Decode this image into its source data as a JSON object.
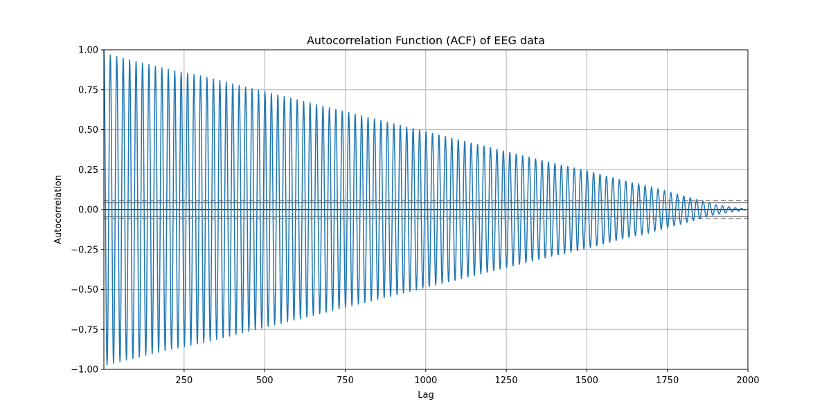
{
  "chart_data": {
    "type": "line",
    "title": "Autocorrelation Function (ACF) of EEG data",
    "xlabel": "Lag",
    "ylabel": "Autocorrelation",
    "xlim": [
      1,
      2000
    ],
    "ylim": [
      -1.0,
      1.0
    ],
    "xticks": [
      250,
      500,
      750,
      1000,
      1250,
      1500,
      1750,
      2000
    ],
    "xtick_labels": [
      "250",
      "500",
      "750",
      "1000",
      "1250",
      "1500",
      "1750",
      "2000"
    ],
    "yticks": [
      -1.0,
      -0.75,
      -0.5,
      -0.25,
      0.0,
      0.25,
      0.5,
      0.75,
      1.0
    ],
    "ytick_labels": [
      "−1.00",
      "−0.75",
      "−0.50",
      "−0.25",
      "0.00",
      "0.25",
      "0.50",
      "0.75",
      "1.00"
    ],
    "grid": true,
    "legend": "none",
    "series": [
      {
        "color": "#1f77b4",
        "oscillation_period_lags": 20,
        "envelope_lag": [
          1,
          100,
          200,
          300,
          400,
          500,
          600,
          700,
          800,
          900,
          1000,
          1100,
          1200,
          1300,
          1400,
          1500,
          1600,
          1700,
          1800,
          1900,
          2000
        ],
        "envelope_amplitude": [
          0.98,
          0.93,
          0.88,
          0.84,
          0.79,
          0.74,
          0.69,
          0.64,
          0.59,
          0.54,
          0.49,
          0.44,
          0.39,
          0.34,
          0.29,
          0.245,
          0.19,
          0.14,
          0.085,
          0.03,
          0.0
        ]
      }
    ],
    "reference_lines": [
      {
        "y": 0.0,
        "style": "solid",
        "color": "#000000"
      },
      {
        "y": 0.0566,
        "style": "dashed",
        "color": "#808080"
      },
      {
        "y": -0.0566,
        "style": "dashed",
        "color": "#808080"
      },
      {
        "y": 0.0438,
        "style": "solid",
        "color": "#808080"
      },
      {
        "y": -0.0438,
        "style": "solid",
        "color": "#808080"
      }
    ]
  }
}
